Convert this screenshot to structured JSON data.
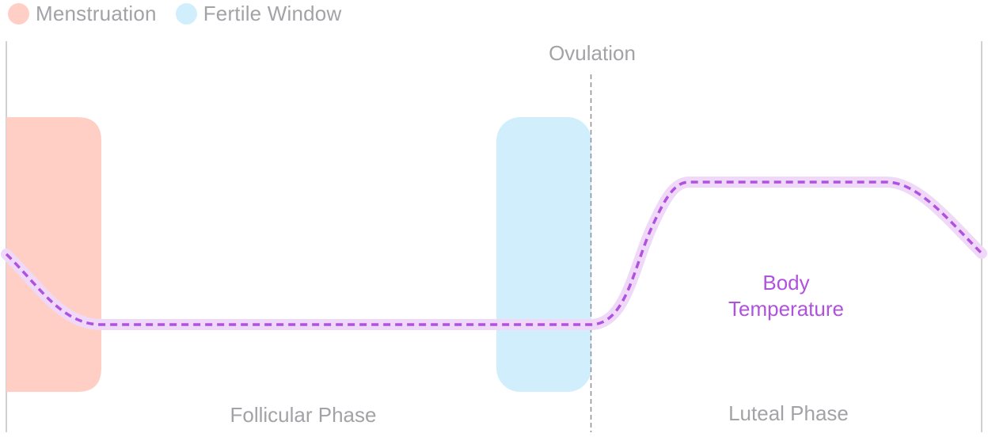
{
  "legend": {
    "menstruation": {
      "label": "Menstruation",
      "color": "#ffcfc5"
    },
    "fertile_window": {
      "label": "Fertile Window",
      "color": "#d1eefc"
    }
  },
  "labels": {
    "ovulation": "Ovulation",
    "body_temperature_line1": "Body",
    "body_temperature_line2": "Temperature",
    "follicular_phase": "Follicular Phase",
    "luteal_phase": "Luteal Phase"
  },
  "colors": {
    "temperature": "#af52de",
    "temperature_glow": "#f0d8f9",
    "axis": "#c4c4c6",
    "ovulation_line": "#8e8e93",
    "muted_text": "#a3a3a7"
  }
}
